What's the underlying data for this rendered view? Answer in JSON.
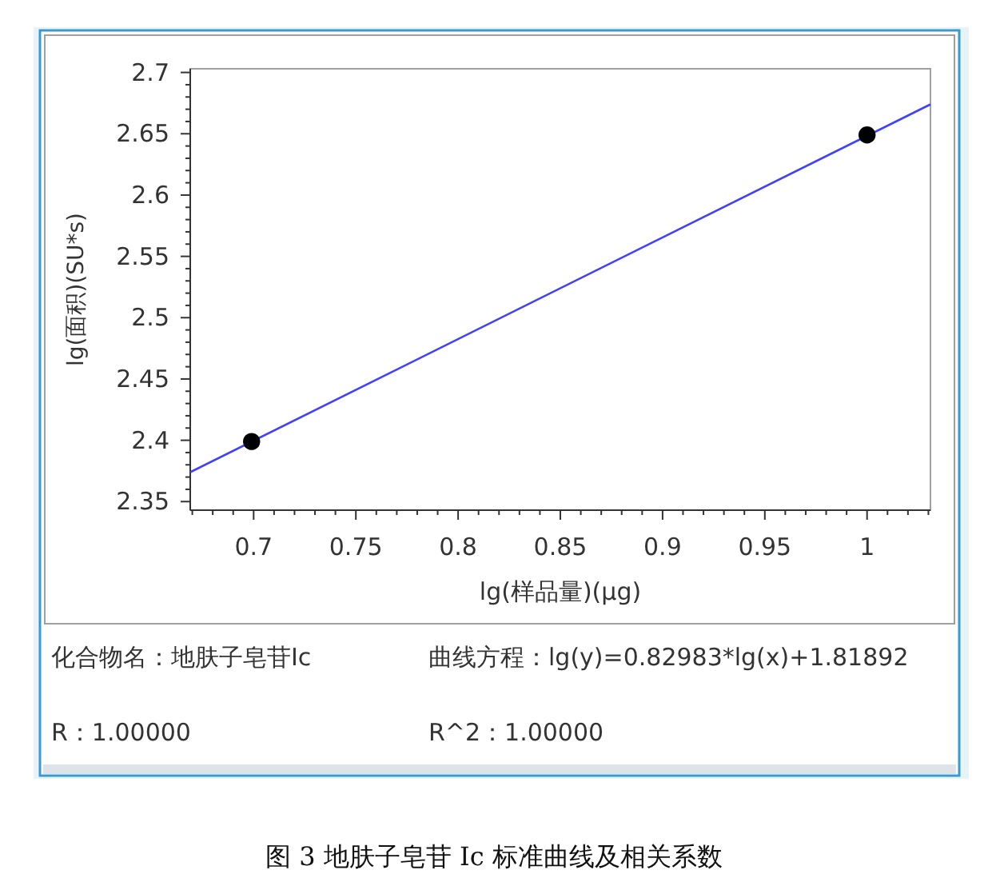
{
  "chart_data": {
    "type": "scatter",
    "title": "图 3  地肤子皂苷 Ic 标准曲线及相关系数",
    "xlabel": "lg(样品量)(μg)",
    "ylabel": "lg(面积)(SU*s)",
    "xlim": [
      0.669,
      1.031
    ],
    "ylim": [
      2.343,
      2.703
    ],
    "xticks": [
      {
        "value": 0.67,
        "label": null
      },
      {
        "value": 0.68,
        "label": null
      },
      {
        "value": 0.69,
        "label": null
      },
      0.7,
      {
        "value": 0.71,
        "label": null
      },
      {
        "value": 0.72,
        "label": null
      },
      {
        "value": 0.73,
        "label": null
      },
      {
        "value": 0.74,
        "label": null
      },
      0.75,
      {
        "value": 0.76,
        "label": null
      },
      {
        "value": 0.77,
        "label": null
      },
      {
        "value": 0.78,
        "label": null
      },
      {
        "value": 0.79,
        "label": null
      },
      0.8,
      {
        "value": 0.81,
        "label": null
      },
      {
        "value": 0.82,
        "label": null
      },
      {
        "value": 0.83,
        "label": null
      },
      {
        "value": 0.84,
        "label": null
      },
      0.85,
      {
        "value": 0.86,
        "label": null
      },
      {
        "value": 0.87,
        "label": null
      },
      {
        "value": 0.88,
        "label": null
      },
      {
        "value": 0.89,
        "label": null
      },
      0.9,
      {
        "value": 0.91,
        "label": null
      },
      {
        "value": 0.92,
        "label": null
      },
      {
        "value": 0.93,
        "label": null
      },
      {
        "value": 0.94,
        "label": null
      },
      0.95,
      {
        "value": 0.96,
        "label": null
      },
      {
        "value": 0.97,
        "label": null
      },
      {
        "value": 0.98,
        "label": null
      },
      {
        "value": 0.99,
        "label": null
      },
      1,
      {
        "value": 1.01,
        "label": null
      },
      {
        "value": 1.02,
        "label": null
      },
      {
        "value": 1.03,
        "label": null
      }
    ],
    "yticks": [
      2.35,
      {
        "value": 2.36,
        "label": null
      },
      {
        "value": 2.37,
        "label": null
      },
      {
        "value": 2.38,
        "label": null
      },
      {
        "value": 2.39,
        "label": null
      },
      2.4,
      {
        "value": 2.41,
        "label": null
      },
      {
        "value": 2.42,
        "label": null
      },
      {
        "value": 2.43,
        "label": null
      },
      {
        "value": 2.44,
        "label": null
      },
      2.45,
      {
        "value": 2.46,
        "label": null
      },
      {
        "value": 2.47,
        "label": null
      },
      {
        "value": 2.48,
        "label": null
      },
      {
        "value": 2.49,
        "label": null
      },
      2.5,
      {
        "value": 2.51,
        "label": null
      },
      {
        "value": 2.52,
        "label": null
      },
      {
        "value": 2.53,
        "label": null
      },
      {
        "value": 2.54,
        "label": null
      },
      2.55,
      {
        "value": 2.56,
        "label": null
      },
      {
        "value": 2.57,
        "label": null
      },
      {
        "value": 2.58,
        "label": null
      },
      {
        "value": 2.59,
        "label": null
      },
      2.6,
      {
        "value": 2.61,
        "label": null
      },
      {
        "value": 2.62,
        "label": null
      },
      {
        "value": 2.63,
        "label": null
      },
      {
        "value": 2.64,
        "label": null
      },
      2.65,
      {
        "value": 2.66,
        "label": null
      },
      {
        "value": 2.67,
        "label": null
      },
      {
        "value": 2.68,
        "label": null
      },
      {
        "value": 2.69,
        "label": null
      },
      2.7
    ],
    "marker": "circle",
    "grid": false,
    "series": [
      {
        "type": "line",
        "marker": "none",
        "color": "#4040ff",
        "x": [
          0.669,
          1.031
        ],
        "values": [
          2.374,
          2.674
        ]
      },
      {
        "color": "#000000",
        "x": [
          0.699,
          1.0
        ],
        "values": [
          2.399,
          2.649
        ]
      }
    ],
    "annotations": [
      "化合物名：地肤子皂苷Ic",
      "曲线方程：lg(y)=0.82983*lg(x)+1.81892",
      "R：1.00000",
      "R^2：1.00000"
    ]
  }
}
